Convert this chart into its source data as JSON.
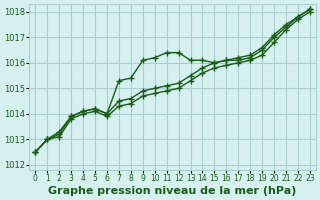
{
  "hours": [
    0,
    1,
    2,
    3,
    4,
    5,
    6,
    7,
    8,
    9,
    10,
    11,
    12,
    13,
    14,
    15,
    16,
    17,
    18,
    19,
    20,
    21,
    22,
    23
  ],
  "line1": [
    1012.5,
    1013.0,
    1013.3,
    1013.9,
    1014.1,
    1014.2,
    1014.0,
    1015.3,
    1015.4,
    1016.1,
    1016.2,
    1016.4,
    1016.4,
    1016.1,
    1016.1,
    1016.0,
    1016.1,
    1016.2,
    1016.3,
    1016.6,
    1017.1,
    1017.5,
    1017.8,
    1018.1
  ],
  "line2": [
    1012.5,
    1013.0,
    1013.2,
    1013.9,
    1014.1,
    1014.2,
    1014.0,
    1014.5,
    1014.6,
    1014.9,
    1015.0,
    1015.1,
    1015.2,
    1015.5,
    1015.8,
    1016.0,
    1016.1,
    1016.1,
    1016.2,
    1016.5,
    1017.0,
    1017.4,
    1017.8,
    1018.1
  ],
  "line3": [
    1012.5,
    1013.0,
    1013.1,
    1013.8,
    1014.0,
    1014.1,
    1013.9,
    1014.3,
    1014.4,
    1014.7,
    1014.8,
    1014.9,
    1015.0,
    1015.3,
    1015.6,
    1015.8,
    1015.9,
    1016.0,
    1016.1,
    1016.3,
    1016.8,
    1017.3,
    1017.7,
    1018.0
  ],
  "bg_color": "#d6f0f0",
  "grid_color": "#aacece",
  "line_color": "#1a5c1a",
  "marker": "+",
  "ylabel_ticks": [
    1012,
    1013,
    1014,
    1015,
    1016,
    1017,
    1018
  ],
  "xlim": [
    -0.5,
    23.5
  ],
  "ylim": [
    1011.8,
    1018.3
  ],
  "xlabel": "Graphe pression niveau de la mer (hPa)",
  "xlabel_color": "#1a5c1a",
  "xlabel_fontsize": 8,
  "tick_fontsize": 6,
  "linewidth": 1.0,
  "markersize": 4
}
